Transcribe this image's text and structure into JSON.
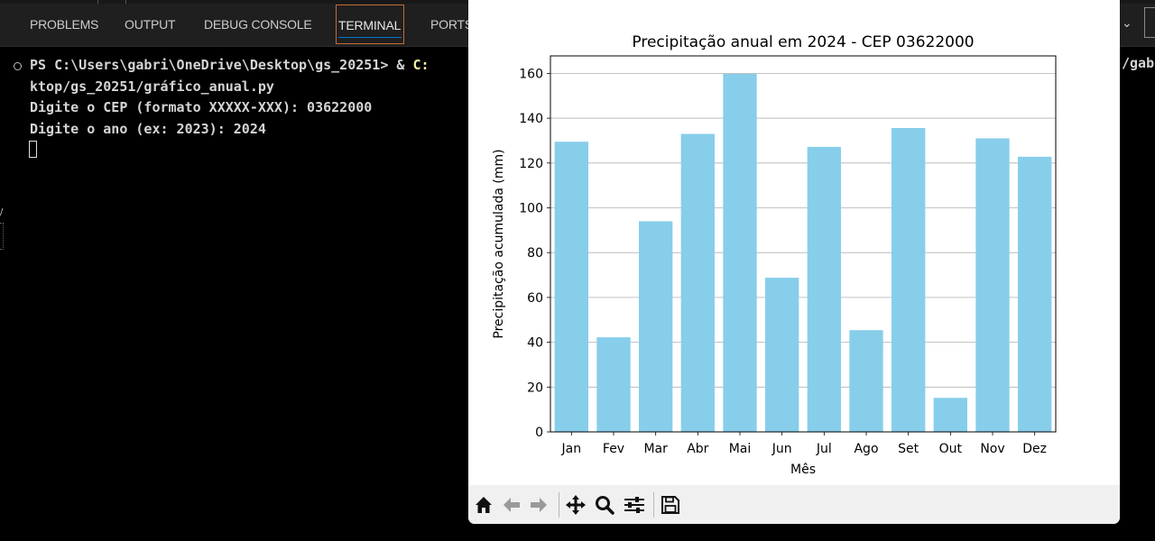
{
  "panel": {
    "tabs": [
      {
        "label": "PROBLEMS"
      },
      {
        "label": "OUTPUT"
      },
      {
        "label": "DEBUG CONSOLE"
      },
      {
        "label": "TERMINAL"
      },
      {
        "label": "PORTS"
      }
    ],
    "active_tab": "TERMINAL",
    "chevron": "chevron-down-icon"
  },
  "terminal": {
    "prompt": "PS C:\\Users\\gabri\\OneDrive\\Desktop\\gs_20251> ",
    "amp": "& ",
    "cmd_start": "C:",
    "wrap_right": "/gabr",
    "line2": "ktop/gs_20251/gráfico_anual.py",
    "line3": "Digite o CEP (formato XXXXX-XXX): 03622000",
    "line4": "Digite o ano (ex: 2023): 2024"
  },
  "toolbar": {
    "icons": [
      "home-icon",
      "back-icon",
      "forward-icon",
      "pan-icon",
      "zoom-icon",
      "configure-subplots-icon",
      "save-icon"
    ]
  },
  "chart_data": {
    "type": "bar",
    "title": "Precipitação anual em 2024 - CEP 03622000",
    "xlabel": "Mês",
    "ylabel": "Precipitação acumulada (mm)",
    "categories": [
      "Jan",
      "Fev",
      "Mar",
      "Abr",
      "Mai",
      "Jun",
      "Jul",
      "Ago",
      "Set",
      "Out",
      "Nov",
      "Dez"
    ],
    "values": [
      129.5,
      42.2,
      94,
      133,
      159.8,
      68.8,
      127.2,
      45.4,
      135.6,
      15.2,
      131,
      122.8
    ],
    "ylim": [
      0,
      167.8
    ],
    "yticks": [
      0,
      20,
      40,
      60,
      80,
      100,
      120,
      140,
      160
    ],
    "grid": "y",
    "bar_color": "#87ceeb"
  }
}
